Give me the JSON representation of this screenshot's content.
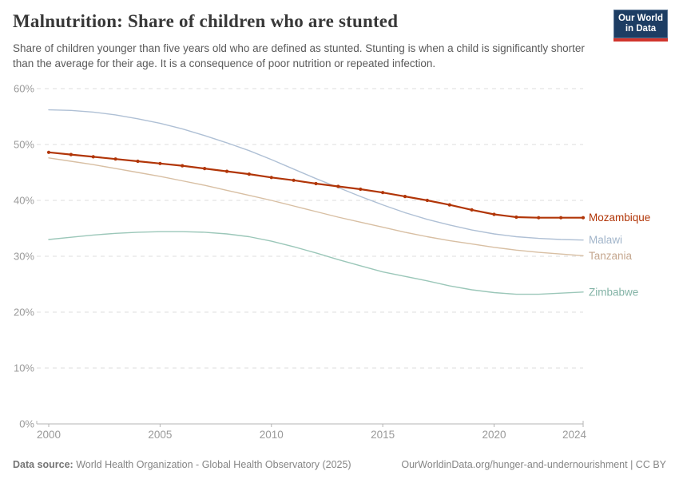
{
  "header": {
    "title": "Malnutrition: Share of children who are stunted",
    "subtitle": "Share of children younger than five years old who are defined as stunted. Stunting is when a child is significantly shorter than the average for their age. It is a consequence of poor nutrition or repeated infection.",
    "logo": {
      "line1": "Our World",
      "line2": "in Data",
      "bg_color": "#1d3d63",
      "bar_color": "#d0342c"
    }
  },
  "chart_data": {
    "type": "line",
    "title": "Malnutrition: Share of children who are stunted",
    "xlabel": "",
    "ylabel": "",
    "unit": "%",
    "grid": "horizontal-dashed",
    "legend_position": "right-end-labels",
    "xlim": [
      2000,
      2024
    ],
    "ylim": [
      0,
      60
    ],
    "yticks": [
      {
        "value": 0,
        "label": "0%"
      },
      {
        "value": 10,
        "label": "10%"
      },
      {
        "value": 20,
        "label": "20%"
      },
      {
        "value": 30,
        "label": "30%"
      },
      {
        "value": 40,
        "label": "40%"
      },
      {
        "value": 50,
        "label": "50%"
      },
      {
        "value": 60,
        "label": "60%"
      }
    ],
    "xticks": [
      {
        "value": 2000,
        "label": "2000"
      },
      {
        "value": 2005,
        "label": "2005"
      },
      {
        "value": 2010,
        "label": "2010"
      },
      {
        "value": 2015,
        "label": "2015"
      },
      {
        "value": 2020,
        "label": "2020"
      },
      {
        "value": 2024,
        "label": "2024"
      }
    ],
    "x": [
      2000,
      2001,
      2002,
      2003,
      2004,
      2005,
      2006,
      2007,
      2008,
      2009,
      2010,
      2011,
      2012,
      2013,
      2014,
      2015,
      2016,
      2017,
      2018,
      2019,
      2020,
      2021,
      2022,
      2023,
      2024
    ],
    "series": [
      {
        "name": "Mozambique",
        "color": "#b13507",
        "label_color": "#b13507",
        "markers": true,
        "values": [
          48.6,
          48.2,
          47.8,
          47.4,
          47.0,
          46.6,
          46.2,
          45.7,
          45.2,
          44.7,
          44.1,
          43.6,
          43.0,
          42.5,
          42.0,
          41.4,
          40.7,
          40.0,
          39.2,
          38.3,
          37.5,
          37.0,
          36.9,
          36.9,
          36.9
        ]
      },
      {
        "name": "Malawi",
        "color": "#afc0d5",
        "label_color": "#a2b5ca",
        "markers": false,
        "values": [
          56.2,
          56.1,
          55.8,
          55.3,
          54.6,
          53.8,
          52.8,
          51.6,
          50.3,
          48.9,
          47.3,
          45.6,
          43.9,
          42.3,
          40.7,
          39.2,
          37.8,
          36.6,
          35.6,
          34.7,
          34.0,
          33.5,
          33.2,
          33.0,
          32.9
        ]
      },
      {
        "name": "Tanzania",
        "color": "#d8bfa3",
        "label_color": "#c5a78f",
        "markers": false,
        "values": [
          47.6,
          47.0,
          46.4,
          45.7,
          45.0,
          44.3,
          43.5,
          42.7,
          41.8,
          40.9,
          40.0,
          39.0,
          38.0,
          37.0,
          36.1,
          35.2,
          34.3,
          33.5,
          32.8,
          32.2,
          31.6,
          31.1,
          30.7,
          30.4,
          30.1
        ]
      },
      {
        "name": "Zimbabwe",
        "color": "#9bc7b9",
        "label_color": "#83b3a6",
        "markers": false,
        "values": [
          33.0,
          33.4,
          33.8,
          34.1,
          34.3,
          34.4,
          34.4,
          34.3,
          34.0,
          33.5,
          32.7,
          31.7,
          30.6,
          29.4,
          28.3,
          27.2,
          26.4,
          25.6,
          24.7,
          24.0,
          23.5,
          23.2,
          23.2,
          23.4,
          23.6
        ]
      }
    ]
  },
  "footer": {
    "datasource_label": "Data source:",
    "datasource_value": "World Health Organization - Global Health Observatory (2025)",
    "link": "OurWorldinData.org/hunger-and-undernourishment | CC BY"
  }
}
